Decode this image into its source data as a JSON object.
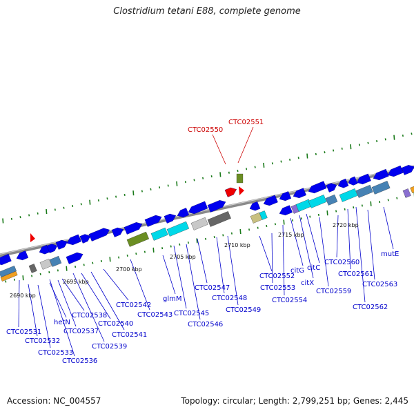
{
  "title": "Clostridium tetani E88, complete genome",
  "footer": {
    "accession": "Accession: NC_004557",
    "summary": "Topology: circular; Length: 2,799,251 bp; Genes: 2,445"
  },
  "colors": {
    "backbone": "#8a8a8a",
    "gene_blue": "#0000ee",
    "label_blue": "#0000cc",
    "label_red": "#cc0000",
    "arrow_red": "#ee0000",
    "tick_green": "#1a7a1a",
    "olive": "#6b8e23",
    "cyan": "#00d8e8",
    "steel": "#4682b4",
    "lightgray": "#c8c8c8",
    "darkgray": "#666666",
    "orange": "#f0a020",
    "khaki": "#c8c080",
    "purple": "#8a6fd0"
  },
  "kbp_labels": [
    "2690 kbp",
    "2695 kbp",
    "2700 kbp",
    "2705 kbp",
    "2710 kbp",
    "2715 kbp",
    "2720 kbp"
  ],
  "red_labels": [
    "CTC02550",
    "CTC02551"
  ],
  "blue_labels": [
    "CTC02531",
    "CTC02532",
    "CTC02533",
    "CTC02536",
    "hetN",
    "CTC02537",
    "CTC02538",
    "CTC02539",
    "CTC02540",
    "CTC02541",
    "CTC02542",
    "CTC02543",
    "glmM",
    "CTC02545",
    "CTC02546",
    "CTC02547",
    "CTC02548",
    "CTC02549",
    "CTC02552",
    "CTC02553",
    "CTC02554",
    "citG",
    "citX",
    "citC",
    "CTC02559",
    "CTC02560",
    "CTC02561",
    "CTC02562",
    "CTC02563",
    "mutE"
  ]
}
